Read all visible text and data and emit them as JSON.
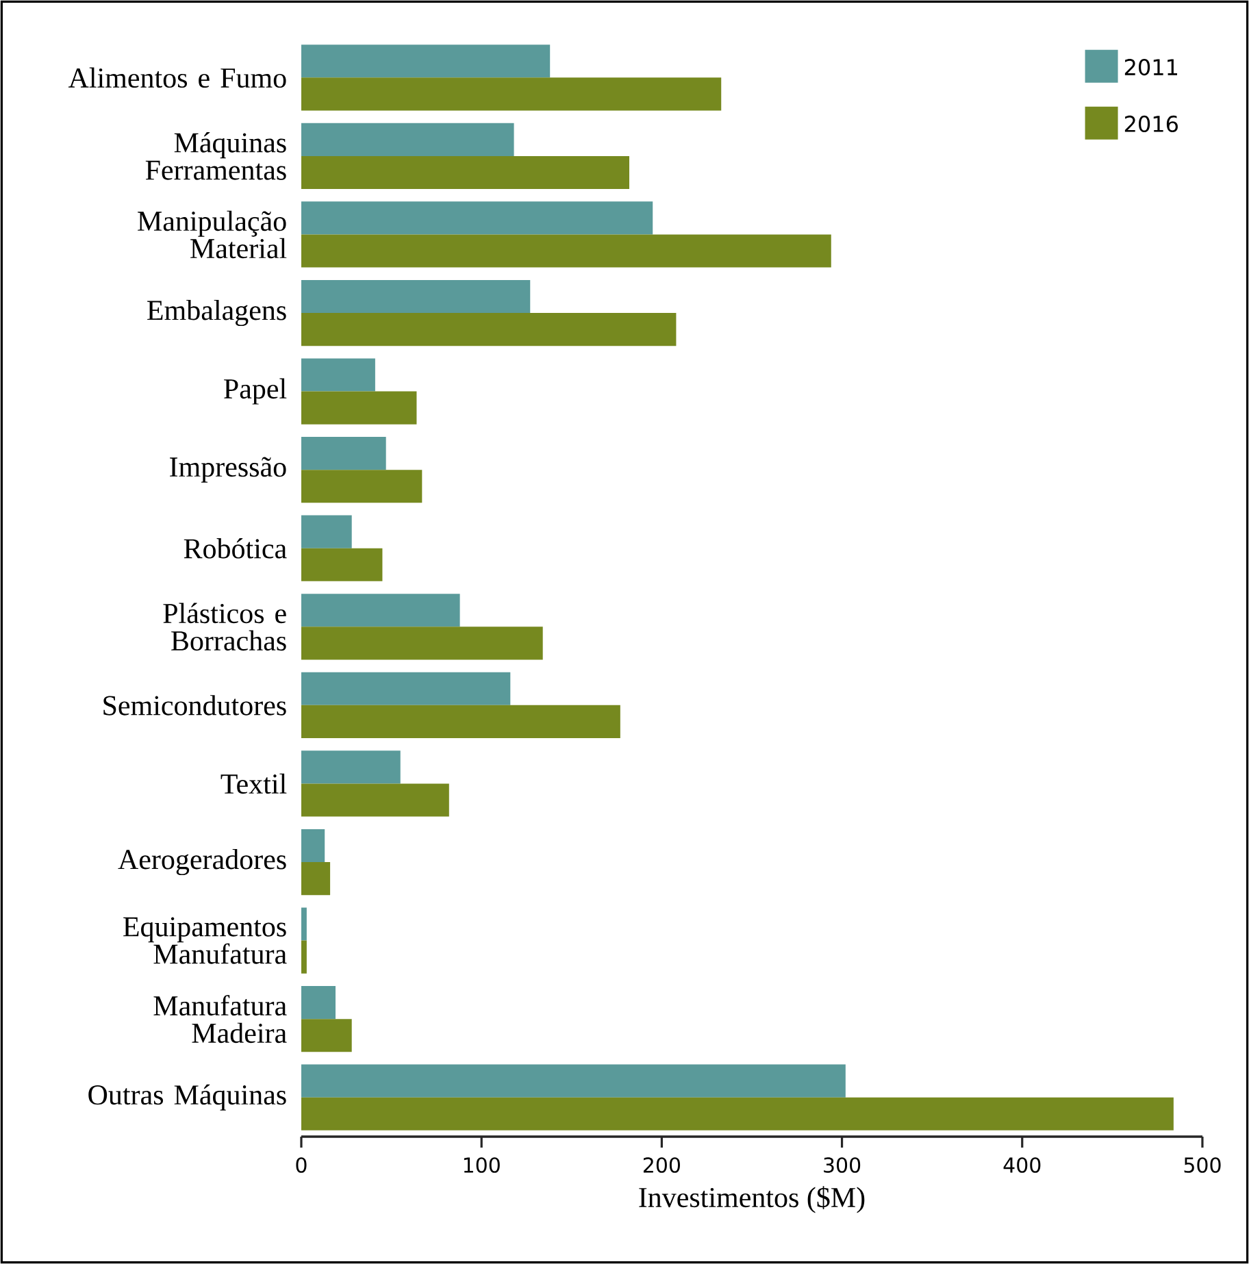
{
  "chart_data": {
    "type": "bar",
    "orientation": "horizontal",
    "xlabel": "Investimentos ($M)",
    "categories": [
      "Alimentos e Fumo",
      "Máquinas Ferramentas",
      "Manipulação Material",
      "Embalagens",
      "Papel",
      "Impressão",
      "Robótica",
      "Plásticos e Borrachas",
      "Semicondutores",
      "Textil",
      "Aerogeradores",
      "Equipamentos Manufatura",
      "Manufatura Madeira",
      "Outras Máquinas"
    ],
    "series": [
      {
        "name": "2011",
        "color": "#5a9a9a",
        "values": [
          138,
          118,
          195,
          127,
          41,
          47,
          28,
          88,
          116,
          55,
          13,
          3,
          19,
          302
        ]
      },
      {
        "name": "2016",
        "color": "#76891f",
        "values": [
          233,
          182,
          294,
          208,
          64,
          67,
          45,
          134,
          177,
          82,
          16,
          3,
          28,
          484
        ]
      }
    ],
    "xlim": [
      0,
      500
    ],
    "xticks": [
      0,
      100,
      200,
      300,
      400,
      500
    ],
    "legend": "top right",
    "grid": false
  }
}
